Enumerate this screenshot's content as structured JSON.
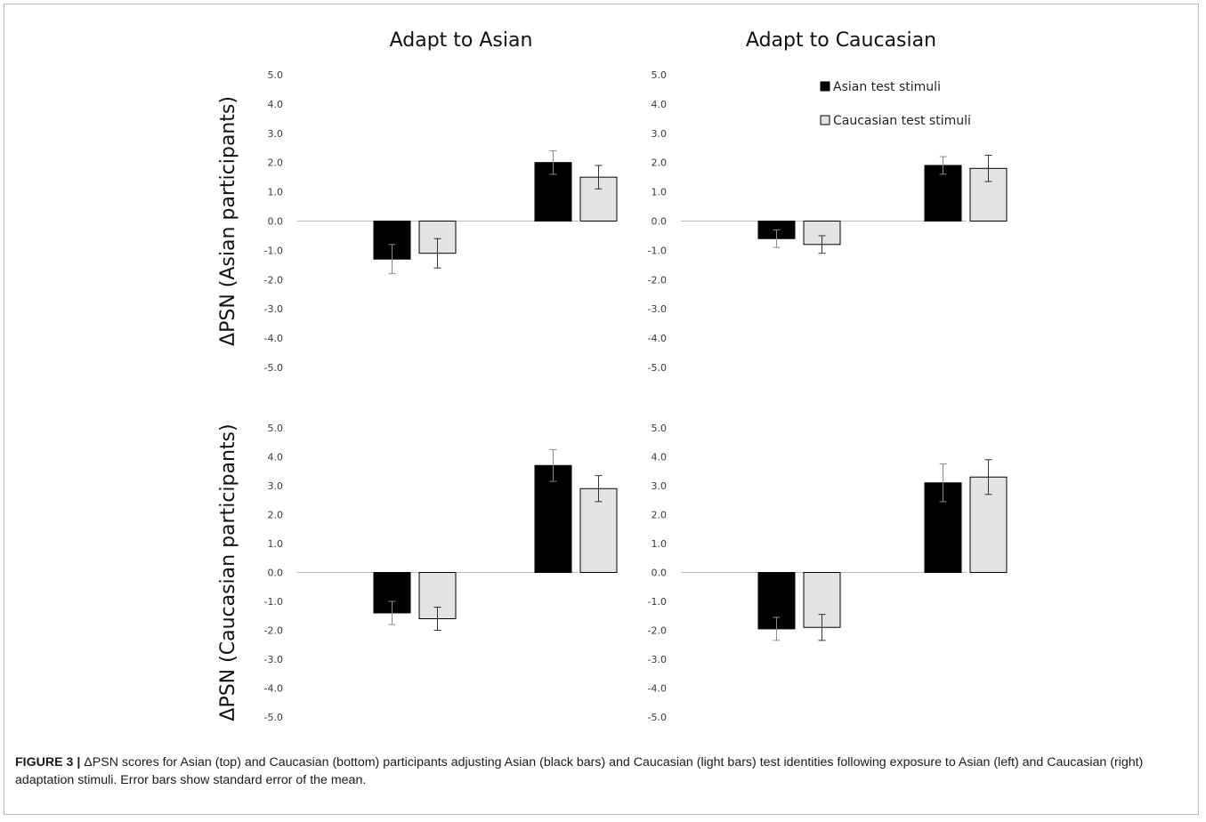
{
  "chart_data": {
    "type": "bar",
    "column_titles": [
      "Adapt to Asian",
      "Adapt to Caucasian"
    ],
    "row_labels": [
      "ΔPSN (Asian participants)",
      "ΔPSN (Caucasian participants)"
    ],
    "legend": [
      {
        "label": "Asian test stimuli",
        "color": "#000000"
      },
      {
        "label": "Caucasian test stimuli",
        "color": "#e3e3e3"
      }
    ],
    "legend_placement": "top-right",
    "ylim": [
      -5,
      5
    ],
    "yticks": [
      "5.0",
      "4.0",
      "3.0",
      "2.0",
      "1.0",
      "0.0",
      "-1.0",
      "-2.0",
      "-3.0",
      "-4.0",
      "-5.0"
    ],
    "grid": false,
    "panels": [
      {
        "row": 0,
        "col": 0,
        "groups": [
          {
            "values": [
              -1.3,
              -1.1
            ],
            "errors": [
              0.5,
              0.5
            ]
          },
          {
            "values": [
              2.0,
              1.5
            ],
            "errors": [
              0.4,
              0.4
            ]
          }
        ]
      },
      {
        "row": 0,
        "col": 1,
        "groups": [
          {
            "values": [
              -0.6,
              -0.8
            ],
            "errors": [
              0.3,
              0.3
            ]
          },
          {
            "values": [
              1.9,
              1.8
            ],
            "errors": [
              0.3,
              0.45
            ]
          }
        ]
      },
      {
        "row": 1,
        "col": 0,
        "groups": [
          {
            "values": [
              -1.4,
              -1.6
            ],
            "errors": [
              0.4,
              0.4
            ]
          },
          {
            "values": [
              3.7,
              2.9
            ],
            "errors": [
              0.55,
              0.45
            ]
          }
        ]
      },
      {
        "row": 1,
        "col": 1,
        "groups": [
          {
            "values": [
              -1.95,
              -1.9
            ],
            "errors": [
              0.4,
              0.45
            ]
          },
          {
            "values": [
              3.1,
              3.3
            ],
            "errors": [
              0.65,
              0.6
            ]
          }
        ]
      }
    ]
  },
  "caption": {
    "label": "FIGURE 3 |",
    "text": " ΔPSN scores for Asian (top) and Caucasian (bottom) participants adjusting Asian (black bars) and Caucasian (light bars) test identities following exposure to Asian (left) and Caucasian (right) adaptation stimuli. Error bars show standard error of the mean."
  }
}
